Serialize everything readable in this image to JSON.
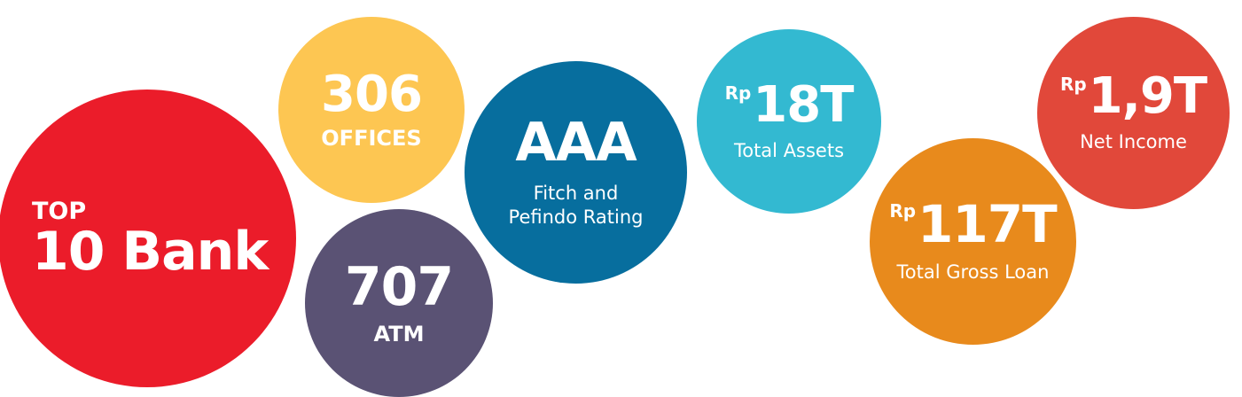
{
  "colors": {
    "top10": "#EB1C2A",
    "offices": "#FDC652",
    "atm": "#5A5274",
    "aaa": "#076E9E",
    "assets": "#33B9D1",
    "loan": "#E88A1C",
    "income": "#E1483A"
  },
  "top10": {
    "small": "TOP",
    "big": "10 Bank"
  },
  "offices": {
    "big": "306",
    "label": "OFFICES"
  },
  "atm": {
    "big": "707",
    "label": "ATM"
  },
  "aaa": {
    "big": "AAA",
    "label_line1": "Fitch and",
    "label_line2": "Pefindo Rating"
  },
  "assets": {
    "prefix": "Rp",
    "big": "18T",
    "label": "Total Assets"
  },
  "loan": {
    "prefix": "Rp",
    "big": "117T",
    "label": "Total Gross Loan"
  },
  "income": {
    "prefix": "Rp",
    "big": "1,9T",
    "label": "Net Income"
  }
}
